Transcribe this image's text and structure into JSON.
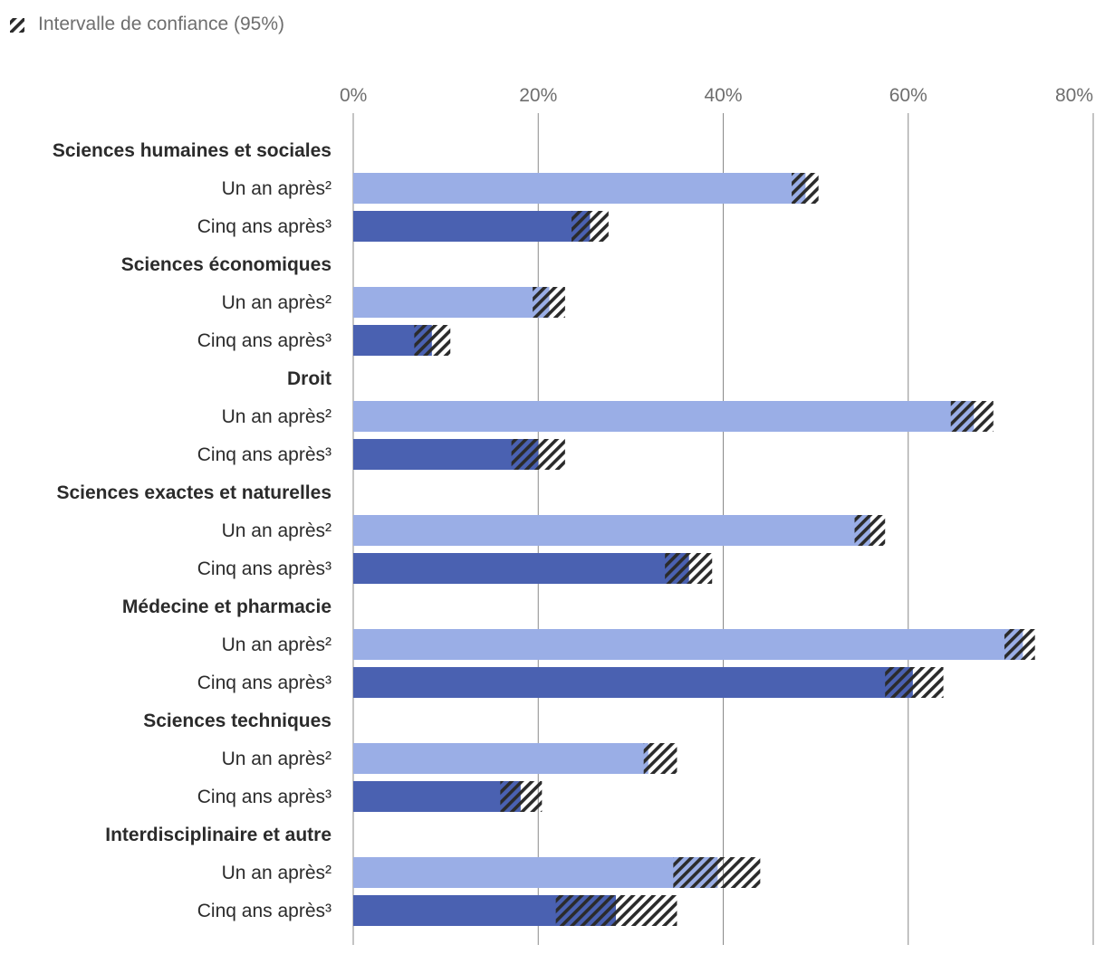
{
  "chart_data": {
    "type": "bar",
    "orientation": "horizontal",
    "legend": {
      "position": "top-left",
      "label": "Intervalle de confiance (95%)"
    },
    "x_axis": {
      "min": 0,
      "max": 80,
      "ticks": [
        "0%",
        "20%",
        "40%",
        "60%",
        "80%"
      ],
      "tick_values": [
        0,
        20,
        40,
        60,
        80
      ],
      "position": "top",
      "grid": true
    },
    "series": [
      {
        "name": "Un an après²",
        "color": "#9aaee6"
      },
      {
        "name": "Cinq ans après³",
        "color": "#4a61b1"
      }
    ],
    "ci_pattern_color": "#2b2b2b",
    "groups": [
      {
        "name": "Sciences humaines et sociales",
        "rows": [
          {
            "label": "Un an après²",
            "series": 0,
            "value": 48.9,
            "ci_low": 47.4,
            "ci_high": 50.3
          },
          {
            "label": "Cinq ans après³",
            "series": 1,
            "value": 25.6,
            "ci_low": 23.6,
            "ci_high": 27.6
          }
        ]
      },
      {
        "name": "Sciences économiques",
        "rows": [
          {
            "label": "Un an après²",
            "series": 0,
            "value": 21.2,
            "ci_low": 19.4,
            "ci_high": 22.9
          },
          {
            "label": "Cinq ans après³",
            "series": 1,
            "value": 8.5,
            "ci_low": 6.6,
            "ci_high": 10.5
          }
        ]
      },
      {
        "name": "Droit",
        "rows": [
          {
            "label": "Un an après²",
            "series": 0,
            "value": 67.1,
            "ci_low": 64.6,
            "ci_high": 69.2
          },
          {
            "label": "Cinq ans après³",
            "series": 1,
            "value": 20.0,
            "ci_low": 17.1,
            "ci_high": 22.9
          }
        ]
      },
      {
        "name": "Sciences exactes et naturelles",
        "rows": [
          {
            "label": "Un an après²",
            "series": 0,
            "value": 55.9,
            "ci_low": 54.2,
            "ci_high": 57.5
          },
          {
            "label": "Cinq ans après³",
            "series": 1,
            "value": 36.3,
            "ci_low": 33.7,
            "ci_high": 38.8
          }
        ]
      },
      {
        "name": "Médecine et pharmacie",
        "rows": [
          {
            "label": "Un an après²",
            "series": 0,
            "value": 72.4,
            "ci_low": 70.4,
            "ci_high": 73.7
          },
          {
            "label": "Cinq ans après³",
            "series": 1,
            "value": 60.5,
            "ci_low": 57.5,
            "ci_high": 63.8
          }
        ]
      },
      {
        "name": "Sciences techniques",
        "rows": [
          {
            "label": "Un an après²",
            "series": 0,
            "value": 31.9,
            "ci_low": 31.4,
            "ci_high": 35.0
          },
          {
            "label": "Cinq ans après³",
            "series": 1,
            "value": 18.1,
            "ci_low": 15.9,
            "ci_high": 20.4
          }
        ]
      },
      {
        "name": "Interdisciplinaire et autre",
        "rows": [
          {
            "label": "Un an après²",
            "series": 0,
            "value": 39.4,
            "ci_low": 34.6,
            "ci_high": 44.0
          },
          {
            "label": "Cinq ans après³",
            "series": 1,
            "value": 28.4,
            "ci_low": 21.9,
            "ci_high": 35.0
          }
        ]
      }
    ]
  }
}
